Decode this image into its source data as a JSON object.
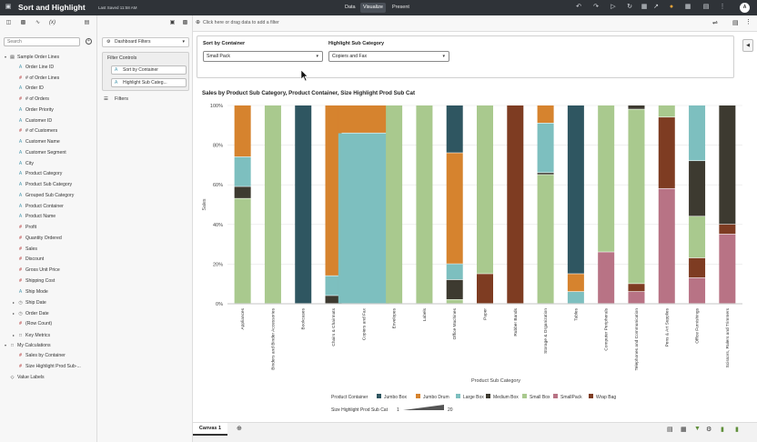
{
  "app": {
    "title": "Sort and Highlight",
    "saved": "Last Saved 11:58 AM",
    "modes": [
      "Data",
      "Visualize",
      "Present"
    ],
    "active_mode": "Visualize",
    "user_initial": "A"
  },
  "left_panel": {
    "search_placeholder": "Search",
    "tree": [
      {
        "label": "Sample Order Lines",
        "type": "db",
        "level": 0,
        "expanded": true
      },
      {
        "label": "Order Line ID",
        "type": "attr",
        "level": 1
      },
      {
        "label": "# of Order Lines",
        "type": "meas",
        "level": 1
      },
      {
        "label": "Order ID",
        "type": "attr",
        "level": 1
      },
      {
        "label": "# of Orders",
        "type": "meas",
        "level": 1
      },
      {
        "label": "Order Priority",
        "type": "attr",
        "level": 1
      },
      {
        "label": "Customer ID",
        "type": "attr",
        "level": 1
      },
      {
        "label": "# of Customers",
        "type": "meas",
        "level": 1
      },
      {
        "label": "Customer Name",
        "type": "attr",
        "level": 1
      },
      {
        "label": "Customer Segment",
        "type": "attr",
        "level": 1
      },
      {
        "label": "City",
        "type": "attr",
        "level": 1
      },
      {
        "label": "Product Category",
        "type": "attr",
        "level": 1
      },
      {
        "label": "Product Sub Category",
        "type": "attr",
        "level": 1
      },
      {
        "label": "Grouped Sub Category",
        "type": "attr",
        "level": 1
      },
      {
        "label": "Product Container",
        "type": "attr",
        "level": 1
      },
      {
        "label": "Product Name",
        "type": "attr",
        "level": 1
      },
      {
        "label": "Profit",
        "type": "meas",
        "level": 1
      },
      {
        "label": "Quantity Ordered",
        "type": "meas",
        "level": 1
      },
      {
        "label": "Sales",
        "type": "meas",
        "level": 1
      },
      {
        "label": "Discount",
        "type": "meas",
        "level": 1
      },
      {
        "label": "Gross Unit Price",
        "type": "meas",
        "level": 1
      },
      {
        "label": "Shipping Cost",
        "type": "meas",
        "level": 1
      },
      {
        "label": "Ship Mode",
        "type": "attr",
        "level": 1
      },
      {
        "label": "Ship Date",
        "type": "date",
        "level": 1,
        "collapsed": true
      },
      {
        "label": "Order Date",
        "type": "date",
        "level": 1,
        "collapsed": true
      },
      {
        "label": "(Row Count)",
        "type": "meas",
        "level": 1
      },
      {
        "label": "Key Metrics",
        "type": "fold",
        "level": 1,
        "collapsed": true
      },
      {
        "label": "My Calculations",
        "type": "fold",
        "level": 0,
        "expanded": true
      },
      {
        "label": "Sales by Container",
        "type": "meas",
        "level": 1
      },
      {
        "label": "Size Highlight Prod Sub-...",
        "type": "meas",
        "level": 1
      },
      {
        "label": "Value Labels",
        "type": "tag",
        "level": 0
      }
    ]
  },
  "mid_panel": {
    "dashboard_filters": "Dashboard Filters",
    "filter_controls": "Filter Controls",
    "chips": [
      "Sort by Container",
      "Highlight Sub Categ..."
    ],
    "filters": "Filters"
  },
  "filterbar": {
    "placeholder": "Click here or drag data to add a filter"
  },
  "params": {
    "sort_label": "Sort by Container",
    "sort_value": "Small Pack",
    "highlight_label": "Highlight Sub Category",
    "highlight_value": "Copiers and Fax"
  },
  "colors": {
    "Jumbo Box": "#2f5661",
    "Jumbo Drum": "#d6832e",
    "Large Box": "#7dbfbf",
    "Medium Box": "#3d3a30",
    "Small Box": "#a9c98e",
    "SmallPack": "#b87385",
    "Wrap Bag": "#7e3c22"
  },
  "chart_data": {
    "type": "bar",
    "title": "Sales by Product Sub Category, Product Container, Size Highlight Prod Sub Cat",
    "xlabel": "Product Sub Category",
    "ylabel": "Sales",
    "ylim": [
      0,
      100
    ],
    "yticks": [
      "0%",
      "20%",
      "40%",
      "60%",
      "80%",
      "100%"
    ],
    "stack_order": [
      "SmallPack",
      "Wrap Bag",
      "Small Box",
      "Medium Box",
      "Large Box",
      "Jumbo Drum",
      "Jumbo Box"
    ],
    "categories": [
      {
        "name": "Appliances",
        "segments": {
          "Small Box": 53,
          "Medium Box": 6,
          "Large Box": 15,
          "Jumbo Drum": 26
        }
      },
      {
        "name": "Binders and Binder Accessories",
        "segments": {
          "Small Box": 100
        }
      },
      {
        "name": "Bookcases",
        "segments": {
          "Jumbo Box": 100
        }
      },
      {
        "name": "Chairs & Chairmats",
        "segments": {
          "Medium Box": 4,
          "Large Box": 10,
          "Jumbo Drum": 86
        }
      },
      {
        "name": "Copiers and Fax",
        "highlight": true,
        "segments": {
          "Large Box": 86,
          "Jumbo Drum": 14
        }
      },
      {
        "name": "Envelopes",
        "segments": {
          "Small Box": 100
        }
      },
      {
        "name": "Labels",
        "segments": {
          "Small Box": 100
        }
      },
      {
        "name": "Office Machines",
        "segments": {
          "Small Box": 2,
          "Medium Box": 10,
          "Large Box": 8,
          "Jumbo Drum": 56,
          "Jumbo Box": 24
        }
      },
      {
        "name": "Paper",
        "segments": {
          "Wrap Bag": 15,
          "Small Box": 85
        }
      },
      {
        "name": "Rubber Bands",
        "segments": {
          "Wrap Bag": 100
        }
      },
      {
        "name": "Storage & Organization",
        "segments": {
          "Small Box": 65,
          "Medium Box": 1,
          "Large Box": 25,
          "Jumbo Drum": 9
        }
      },
      {
        "name": "Tables",
        "segments": {
          "Large Box": 6,
          "Jumbo Drum": 9,
          "Jumbo Box": 85
        }
      },
      {
        "name": "Computer Peripherals",
        "segments": {
          "SmallPack": 26,
          "Small Box": 74
        }
      },
      {
        "name": "Telephones and Communication",
        "segments": {
          "SmallPack": 6,
          "Wrap Bag": 4,
          "Small Box": 88,
          "Medium Box": 2
        }
      },
      {
        "name": "Pens & Art Supplies",
        "segments": {
          "SmallPack": 58,
          "Wrap Bag": 36,
          "Small Box": 6
        }
      },
      {
        "name": "Office Furnishings",
        "segments": {
          "SmallPack": 13,
          "Wrap Bag": 10,
          "Small Box": 21,
          "Medium Box": 28,
          "Large Box": 28
        }
      },
      {
        "name": "Scissors, Rulers and Trimmers",
        "segments": {
          "SmallPack": 35,
          "Wrap Bag": 5,
          "Medium Box": 60
        }
      }
    ],
    "legend": {
      "title": "Product Container",
      "items": [
        "Jumbo Box",
        "Jumbo Drum",
        "Large Box",
        "Medium Box",
        "Small Box",
        "SmallPack",
        "Wrap Bag"
      ],
      "size_title": "Size Highlight Prod Sub Cat",
      "size_min": "1",
      "size_max": "20"
    }
  },
  "bottom": {
    "canvas_tab": "Canvas 1"
  }
}
